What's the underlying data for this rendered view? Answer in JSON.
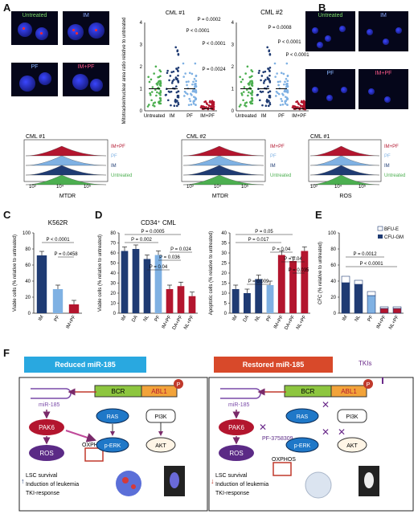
{
  "panels": {
    "A": "A",
    "B": "B",
    "C": "C",
    "D": "D",
    "E": "E",
    "F": "F"
  },
  "panelA": {
    "micro_labels": [
      "Untreated",
      "IM",
      "PF",
      "IM+PF"
    ],
    "chart1": {
      "title": "CML #1",
      "ylabel": "Mitotracker/nuclear area ratio relative to untreated",
      "categories": [
        "Untreated",
        "IM",
        "PF",
        "IM+PF"
      ],
      "ylim": [
        0,
        4
      ],
      "yticks": [
        "0",
        "1",
        "2",
        "3",
        "4"
      ],
      "pvalues": [
        "P = 0.0002",
        "P < 0.0001",
        "P < 0.0001",
        "P = 0.0024"
      ]
    },
    "chart2": {
      "title": "CML #2",
      "categories": [
        "Untreated",
        "IM",
        "PF",
        "IM+PF"
      ],
      "ylim": [
        0,
        4
      ],
      "yticks": [
        "0",
        "1",
        "2",
        "3",
        "4"
      ],
      "pvalues": [
        "P = 0.0008",
        "P < 0.0001",
        "P < 0.0001"
      ]
    },
    "hist1": {
      "title": "CML #1",
      "xlabel": "MTDR",
      "ticks": [
        "10³",
        "10⁴",
        "10⁵"
      ],
      "series": [
        "IM+PF",
        "PF",
        "IM",
        "Untreated"
      ]
    },
    "hist2": {
      "title": "CML #2",
      "xlabel": "MTDR",
      "ticks": [
        "10³",
        "10⁴",
        "10⁵"
      ],
      "series": [
        "IM+PF",
        "PF",
        "IM",
        "Untreated"
      ]
    }
  },
  "panelB": {
    "micro_labels": [
      "Untreated",
      "IM",
      "PF",
      "IM+PF"
    ],
    "hist": {
      "title": "CML #1",
      "xlabel": "ROS",
      "ticks": [
        "10³",
        "10⁴",
        "10⁵"
      ],
      "series": [
        "IM+PF",
        "PF",
        "IM",
        "Untreated"
      ]
    }
  },
  "colors": {
    "untreated": "#4caf50",
    "IM": "#1f3b73",
    "PF": "#7fb1e3",
    "IMPF": "#b3152e",
    "bfue": "#ffffff",
    "cfugm": "#1f3b73"
  },
  "chart_data": [
    {
      "type": "bar",
      "title": "K562R",
      "categories": [
        "IM",
        "PF",
        "IM+PF"
      ],
      "values": [
        72,
        30,
        11
      ],
      "ylabel": "Viable cells (% relative to untreated)",
      "ylim": [
        0,
        100
      ],
      "yticks": [
        "0",
        "20",
        "40",
        "60",
        "80",
        "100"
      ],
      "pvalues": [
        "P < 0.0001",
        "P = 0.0458"
      ]
    },
    {
      "type": "bar",
      "title": "CD34⁺ CML",
      "categories": [
        "IM",
        "DA",
        "NL",
        "PF",
        "IM+PF",
        "DA+PF",
        "NL+PF"
      ],
      "values": [
        62,
        64,
        54,
        58,
        24,
        27,
        17
      ],
      "ylabel": "Viable cells (% relative to untreated)",
      "ylim": [
        0,
        80
      ],
      "yticks": [
        "0",
        "10",
        "20",
        "30",
        "40",
        "50",
        "60",
        "70",
        "80"
      ],
      "pvalues": [
        "P = 0.0005",
        "P = 0.002",
        "P = 0.024",
        "P = 0.036",
        "P = 0.04"
      ]
    },
    {
      "type": "bar",
      "categories": [
        "IM",
        "DA",
        "NL",
        "PF",
        "IM+PF",
        "DA+PF",
        "NL+PF"
      ],
      "values": [
        12,
        10,
        17,
        14,
        29,
        26,
        31
      ],
      "ylabel": "Apoptotic cells (% relative to untreated)",
      "ylim": [
        0,
        40
      ],
      "yticks": [
        "0",
        "5",
        "10",
        "15",
        "20",
        "25",
        "30",
        "35",
        "40"
      ],
      "pvalues": [
        "P = 0.05",
        "P = 0.017",
        "P = 0.04",
        "P = 0.04",
        "P = 0.035",
        "P = 0.009"
      ]
    },
    {
      "type": "bar",
      "title": "",
      "categories": [
        "IM",
        "NL",
        "PF",
        "IM+PF",
        "NL+PF"
      ],
      "series": [
        {
          "name": "BFU-E",
          "values": [
            8,
            5,
            5,
            2,
            2
          ]
        },
        {
          "name": "CFU-GM",
          "values": [
            38,
            36,
            22,
            6,
            6
          ]
        }
      ],
      "ylabel": "CFC (% relative to untreated)",
      "ylim": [
        0,
        100
      ],
      "yticks": [
        "0",
        "20",
        "40",
        "60",
        "80",
        "100"
      ],
      "pvalues": [
        "P = 0.0012",
        "P < 0.0001"
      ]
    }
  ],
  "panelF": {
    "left_title": "Reduced miR-185",
    "right_title": "Restored miR-185",
    "tki": "TKIs",
    "bcr": "BCR",
    "abl1": "ABL1",
    "p": "P",
    "mir": "miR-185",
    "pak6": "PAK6",
    "ros": "ROS",
    "oxphos": "OXPHOS",
    "ras": "RAS",
    "perk": "p-ERK",
    "pi3k": "PI3K",
    "akt": "AKT",
    "pf": "PF-3758309",
    "outcomes": [
      "LSC survival",
      "Induction of leukemia",
      "TKI-response"
    ]
  }
}
